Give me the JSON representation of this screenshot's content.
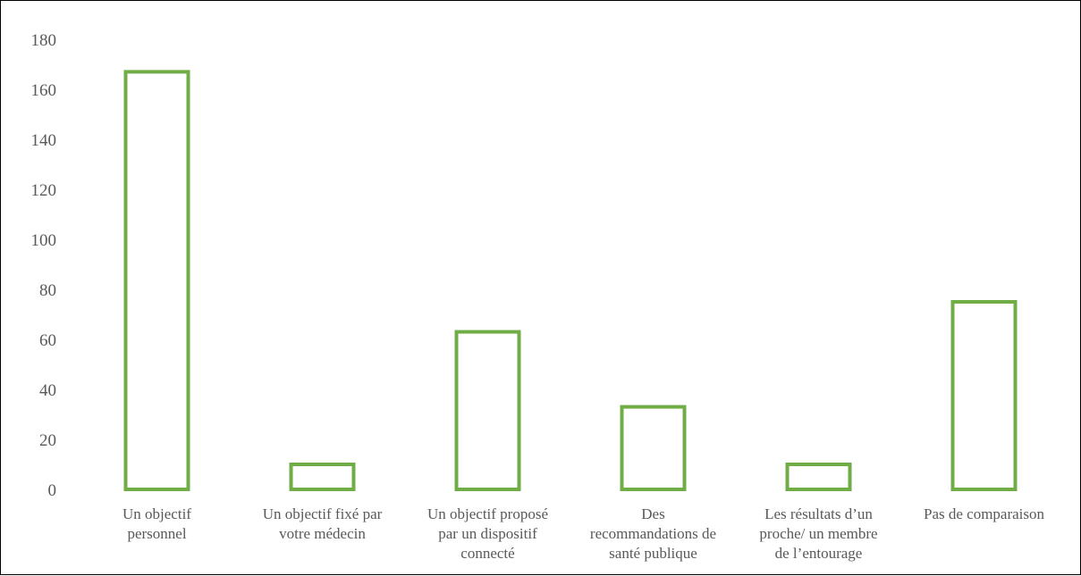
{
  "chart_data": {
    "type": "bar",
    "title": "",
    "xlabel": "",
    "ylabel": "",
    "categories": [
      [
        "Un objectif",
        "personnel"
      ],
      [
        "Un objectif fixé par",
        "votre médecin"
      ],
      [
        "Un objectif proposé",
        "par un dispositif",
        "connecté"
      ],
      [
        "Des",
        "recommandations de",
        "santé publique"
      ],
      [
        "Les résultats d’un",
        "proche/ un membre",
        "de l’entourage"
      ],
      [
        "Pas de comparaison"
      ]
    ],
    "values": [
      167,
      10,
      63,
      33,
      10,
      75
    ],
    "ylim": [
      0,
      180
    ],
    "yticks": [
      0,
      20,
      40,
      60,
      80,
      100,
      120,
      140,
      160,
      180
    ],
    "grid": false,
    "legend": "none",
    "bar_style": "outline",
    "bar_color": "#70AD47"
  }
}
